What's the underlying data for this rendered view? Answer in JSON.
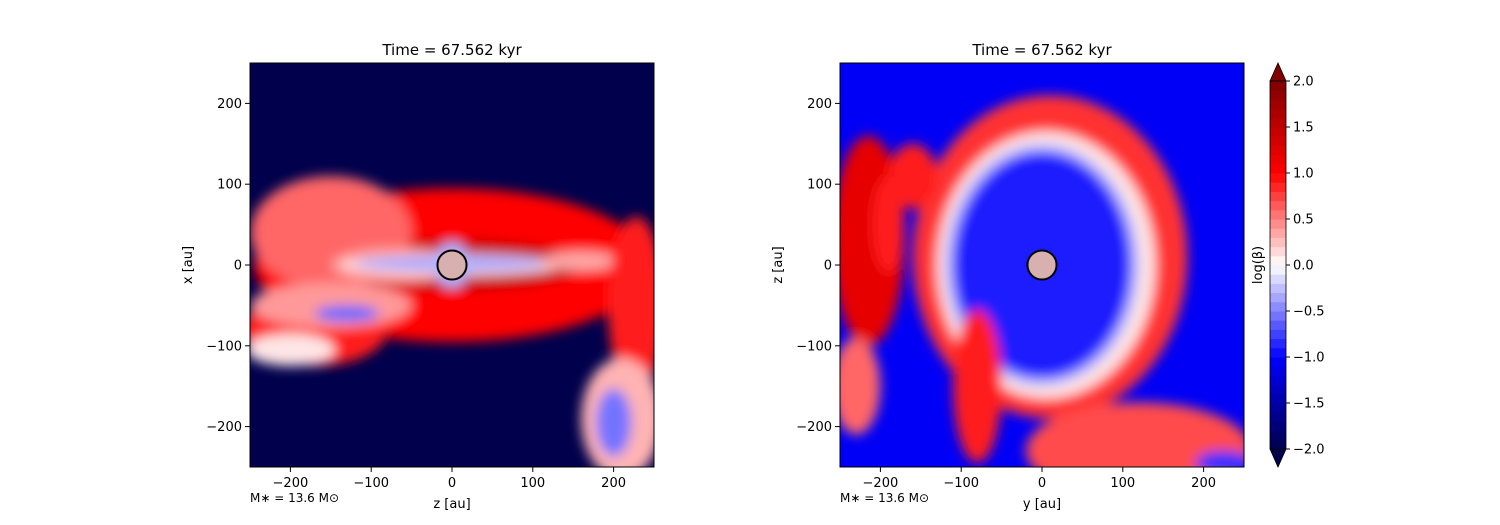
{
  "chart_data": [
    {
      "type": "heatmap",
      "title": "Time = 67.562 kyr",
      "xlabel": "z [au]",
      "ylabel": "x [au]",
      "xlim": [
        -250,
        250
      ],
      "ylim": [
        -250,
        250
      ],
      "xticks": [
        -200,
        -100,
        0,
        100,
        200
      ],
      "yticks": [
        -200,
        -100,
        0,
        100,
        200
      ],
      "annotation": "M∗ = 13.6 M⊙",
      "sink": {
        "x": 0,
        "y": 0,
        "r": 18
      },
      "features": [
        {
          "kind": "ellipse",
          "cx": 0,
          "cy": 0,
          "rx": 245,
          "ry": 95,
          "level": 1.0
        },
        {
          "kind": "ellipse",
          "cx": 0,
          "cy": 0,
          "rx": 160,
          "ry": 32,
          "level": 1.5
        },
        {
          "kind": "ellipse",
          "cx": -150,
          "cy": 40,
          "rx": 100,
          "ry": 70,
          "level": 0.6
        },
        {
          "kind": "ellipse",
          "cx": -70,
          "cy": 0,
          "rx": 80,
          "ry": 22,
          "level": 0.4
        },
        {
          "kind": "ellipse",
          "cx": 0,
          "cy": 0,
          "rx": 140,
          "ry": 14,
          "level": 0.15
        },
        {
          "kind": "ellipse",
          "cx": 0,
          "cy": 2,
          "rx": 120,
          "ry": 9,
          "level": -0.35
        },
        {
          "kind": "ellipse",
          "cx": 160,
          "cy": 5,
          "rx": 50,
          "ry": 12,
          "level": 0.35
        },
        {
          "kind": "ellipse",
          "cx": -170,
          "cy": -80,
          "rx": 90,
          "ry": 45,
          "level": 0.9
        },
        {
          "kind": "ellipse",
          "cx": -200,
          "cy": -105,
          "rx": 55,
          "ry": 20,
          "level": 0.1
        },
        {
          "kind": "ellipse",
          "cx": -150,
          "cy": -50,
          "rx": 100,
          "ry": 28,
          "level": 0.4
        },
        {
          "kind": "ellipse",
          "cx": -130,
          "cy": -60,
          "rx": 40,
          "ry": 10,
          "level": -0.6
        },
        {
          "kind": "ellipse",
          "cx": 228,
          "cy": -50,
          "rx": 35,
          "ry": 110,
          "level": 0.9
        },
        {
          "kind": "ellipse",
          "cx": 210,
          "cy": -190,
          "rx": 50,
          "ry": 75,
          "level": 0.3
        },
        {
          "kind": "ellipse",
          "cx": 200,
          "cy": -195,
          "rx": 22,
          "ry": 42,
          "level": -0.55
        },
        {
          "kind": "ellipse",
          "cx": 0,
          "cy": 0,
          "rx": 22,
          "ry": 28,
          "level": -0.3
        }
      ]
    },
    {
      "type": "heatmap",
      "title": "Time = 67.562 kyr",
      "xlabel": "y [au]",
      "ylabel": "z [au]",
      "xlim": [
        -250,
        250
      ],
      "ylim": [
        -250,
        250
      ],
      "xticks": [
        -200,
        -100,
        0,
        100,
        200
      ],
      "yticks": [
        -200,
        -100,
        0,
        100,
        200
      ],
      "annotation": "M∗ = 13.6 M⊙",
      "sink": {
        "x": 0,
        "y": 0,
        "r": 18
      },
      "features": [
        {
          "kind": "ellipse",
          "cx": 10,
          "cy": 10,
          "rx": 170,
          "ry": 200,
          "level": 0.8
        },
        {
          "kind": "ellipse",
          "cx": 5,
          "cy": 0,
          "rx": 135,
          "ry": 165,
          "level": 0.1
        },
        {
          "kind": "ellipse",
          "cx": 0,
          "cy": 0,
          "rx": 120,
          "ry": 150,
          "level": -0.3
        },
        {
          "kind": "ellipse",
          "cx": 0,
          "cy": 0,
          "rx": 110,
          "ry": 140,
          "level": -0.9
        },
        {
          "kind": "ellipse",
          "cx": 0,
          "cy": 0,
          "rx": 90,
          "ry": 115,
          "level": -0.9
        },
        {
          "kind": "ellipse",
          "cx": -215,
          "cy": 30,
          "rx": 45,
          "ry": 130,
          "level": 1.2
        },
        {
          "kind": "ellipse",
          "cx": -160,
          "cy": 110,
          "rx": 30,
          "ry": 40,
          "level": 0.9
        },
        {
          "kind": "ellipse",
          "cx": -190,
          "cy": 50,
          "rx": 20,
          "ry": 60,
          "level": 0.9
        },
        {
          "kind": "ellipse",
          "cx": -80,
          "cy": -150,
          "rx": 30,
          "ry": 95,
          "level": 0.9
        },
        {
          "kind": "ellipse",
          "cx": -230,
          "cy": -150,
          "rx": 30,
          "ry": 60,
          "level": 0.6
        },
        {
          "kind": "ellipse",
          "cx": 120,
          "cy": -230,
          "rx": 140,
          "ry": 60,
          "level": 0.7
        },
        {
          "kind": "ellipse",
          "cx": 225,
          "cy": -245,
          "rx": 35,
          "ry": 15,
          "level": -0.8
        }
      ]
    }
  ],
  "colorbar": {
    "label": "log(β)",
    "min": -2.0,
    "max": 2.0,
    "levels": 40,
    "ticks": [
      "2.0",
      "1.5",
      "1.0",
      "0.5",
      "0.0",
      "−0.5",
      "−1.0",
      "−1.5",
      "−2.0"
    ],
    "tick_values": [
      2.0,
      1.5,
      1.0,
      0.5,
      0.0,
      -0.5,
      -1.0,
      -1.5,
      -2.0
    ]
  }
}
